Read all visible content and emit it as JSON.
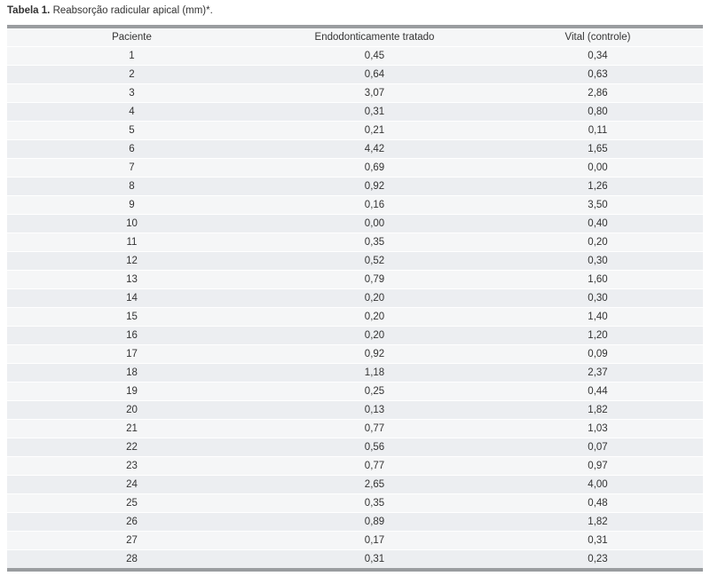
{
  "caption": {
    "label": "Tabela 1.",
    "text": " Reabsorção radicular apical (mm)*."
  },
  "table": {
    "headers": [
      "Paciente",
      "Endodonticamente tratado",
      "Vital (controle)"
    ],
    "rows": [
      [
        "1",
        "0,45",
        "0,34"
      ],
      [
        "2",
        "0,64",
        "0,63"
      ],
      [
        "3",
        "3,07",
        "2,86"
      ],
      [
        "4",
        "0,31",
        "0,80"
      ],
      [
        "5",
        "0,21",
        "0,11"
      ],
      [
        "6",
        "4,42",
        "1,65"
      ],
      [
        "7",
        "0,69",
        "0,00"
      ],
      [
        "8",
        "0,92",
        "1,26"
      ],
      [
        "9",
        "0,16",
        "3,50"
      ],
      [
        "10",
        "0,00",
        "0,40"
      ],
      [
        "11",
        "0,35",
        "0,20"
      ],
      [
        "12",
        "0,52",
        "0,30"
      ],
      [
        "13",
        "0,79",
        "1,60"
      ],
      [
        "14",
        "0,20",
        "0,30"
      ],
      [
        "15",
        "0,20",
        "1,40"
      ],
      [
        "16",
        "0,20",
        "1,20"
      ],
      [
        "17",
        "0,92",
        "0,09"
      ],
      [
        "18",
        "1,18",
        "2,37"
      ],
      [
        "19",
        "0,25",
        "0,44"
      ],
      [
        "20",
        "0,13",
        "1,82"
      ],
      [
        "21",
        "0,77",
        "1,03"
      ],
      [
        "22",
        "0,56",
        "0,07"
      ],
      [
        "23",
        "0,77",
        "0,97"
      ],
      [
        "24",
        "2,65",
        "4,00"
      ],
      [
        "25",
        "0,35",
        "0,48"
      ],
      [
        "26",
        "0,89",
        "1,82"
      ],
      [
        "27",
        "0,17",
        "0,31"
      ],
      [
        "28",
        "0,31",
        "0,23"
      ]
    ]
  }
}
